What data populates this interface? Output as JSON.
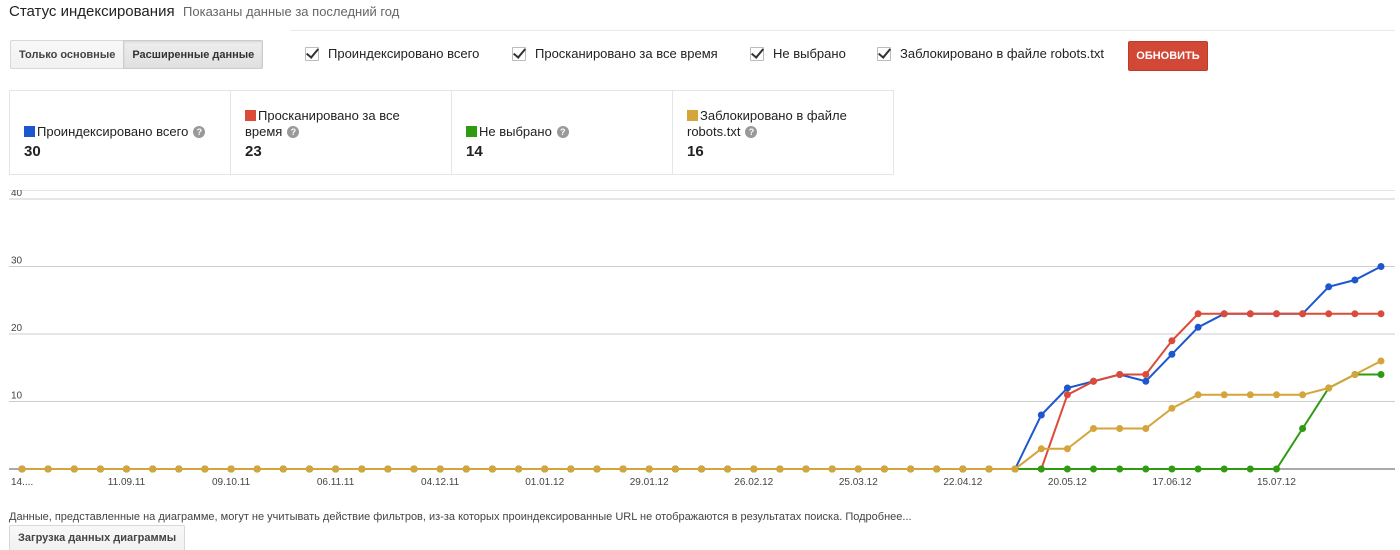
{
  "header": {
    "title": "Статус индексирования",
    "subtitle": "Показаны данные за последний год"
  },
  "view_toggle": {
    "basic_label": "Только основные",
    "advanced_label": "Расширенные данные",
    "selected": "advanced"
  },
  "filters": [
    {
      "label": "Проиндексировано всего",
      "checked": true
    },
    {
      "label": "Просканировано за все время",
      "checked": true
    },
    {
      "label": "Не выбрано",
      "checked": true
    },
    {
      "label": "Заблокировано в файле robots.txt",
      "checked": true
    }
  ],
  "refresh_label": "ОБНОВИТЬ",
  "summary": [
    {
      "label": "Проиндексировано всего",
      "value": "30",
      "color": "#1c57d0"
    },
    {
      "label": "Просканировано за все время",
      "value": "23",
      "color": "#dc4b39"
    },
    {
      "label": "Не выбрано",
      "value": "14",
      "color": "#2e9b10"
    },
    {
      "label": "Заблокировано в файле robots.txt",
      "value": "16",
      "color": "#d5a43a"
    }
  ],
  "chart_data": {
    "type": "line",
    "x_tick_labels": [
      "14....",
      "11.09.11",
      "09.10.11",
      "06.11.11",
      "04.12.11",
      "01.01.12",
      "29.01.12",
      "26.02.12",
      "25.03.12",
      "22.04.12",
      "20.05.12",
      "17.06.12",
      "15.07.12"
    ],
    "y_ticks": [
      10,
      20,
      30,
      40
    ],
    "ylim": [
      0,
      40
    ],
    "grid": true,
    "series": [
      {
        "name": "Проиндексировано всего",
        "color": "#1c57d0",
        "values": [
          0,
          0,
          0,
          0,
          0,
          0,
          0,
          0,
          0,
          0,
          0,
          0,
          0,
          0,
          0,
          0,
          0,
          0,
          0,
          0,
          0,
          0,
          0,
          0,
          0,
          0,
          0,
          0,
          0,
          0,
          0,
          0,
          0,
          0,
          0,
          0,
          0,
          0,
          0,
          8,
          12,
          13,
          14,
          13,
          17,
          21,
          23,
          23,
          23,
          23,
          27,
          28,
          30
        ]
      },
      {
        "name": "Просканировано за все время",
        "color": "#dc4b39",
        "values": [
          0,
          0,
          0,
          0,
          0,
          0,
          0,
          0,
          0,
          0,
          0,
          0,
          0,
          0,
          0,
          0,
          0,
          0,
          0,
          0,
          0,
          0,
          0,
          0,
          0,
          0,
          0,
          0,
          0,
          0,
          0,
          0,
          0,
          0,
          0,
          0,
          0,
          0,
          0,
          0,
          11,
          13,
          14,
          14,
          19,
          23,
          23,
          23,
          23,
          23,
          23,
          23,
          23
        ]
      },
      {
        "name": "Не выбрано",
        "color": "#2e9b10",
        "values": [
          0,
          0,
          0,
          0,
          0,
          0,
          0,
          0,
          0,
          0,
          0,
          0,
          0,
          0,
          0,
          0,
          0,
          0,
          0,
          0,
          0,
          0,
          0,
          0,
          0,
          0,
          0,
          0,
          0,
          0,
          0,
          0,
          0,
          0,
          0,
          0,
          0,
          0,
          0,
          0,
          0,
          0,
          0,
          0,
          0,
          0,
          0,
          0,
          0,
          6,
          12,
          14,
          14
        ]
      },
      {
        "name": "Заблокировано в файле robots.txt",
        "color": "#d5a43a",
        "values": [
          0,
          0,
          0,
          0,
          0,
          0,
          0,
          0,
          0,
          0,
          0,
          0,
          0,
          0,
          0,
          0,
          0,
          0,
          0,
          0,
          0,
          0,
          0,
          0,
          0,
          0,
          0,
          0,
          0,
          0,
          0,
          0,
          0,
          0,
          0,
          0,
          0,
          0,
          0,
          3,
          3,
          6,
          6,
          6,
          9,
          11,
          11,
          11,
          11,
          11,
          12,
          14,
          16
        ]
      }
    ]
  },
  "footnote": "Данные, представленные на диаграмме, могут не учитывать действие фильтров, из-за которых проиндексированные URL не отображаются в результатах поиска. Подробнее...",
  "download_label": "Загрузка данных диаграммы"
}
